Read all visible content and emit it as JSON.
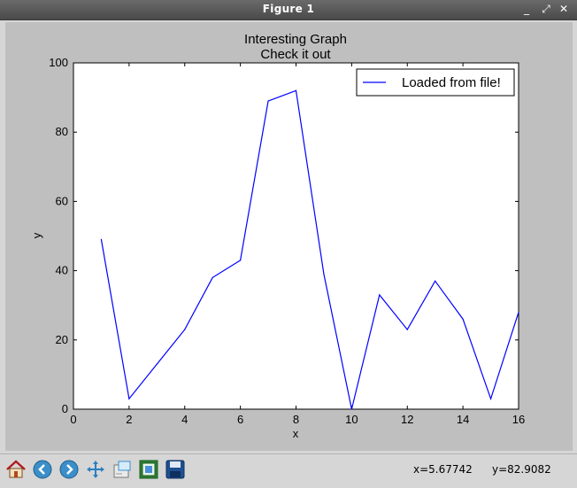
{
  "window": {
    "title": "Figure 1",
    "buttons": {
      "minimize": "_",
      "maximize": "⤢",
      "close": "✕"
    }
  },
  "chart_data": {
    "type": "line",
    "title": "Interesting Graph",
    "subtitle": "Check it out",
    "xlabel": "x",
    "ylabel": "y",
    "xlim": [
      0,
      16
    ],
    "ylim": [
      0,
      100
    ],
    "xticks": [
      0,
      2,
      4,
      6,
      8,
      10,
      12,
      14,
      16
    ],
    "yticks": [
      0,
      20,
      40,
      60,
      80,
      100
    ],
    "grid": false,
    "legend_position": "top-right",
    "series": [
      {
        "name": "Loaded from file!",
        "color": "#0000ff",
        "x": [
          1,
          2,
          3,
          4,
          5,
          6,
          7,
          8,
          9,
          10,
          11,
          12,
          13,
          14,
          15,
          16
        ],
        "y": [
          49,
          3,
          13,
          23,
          38,
          43,
          89,
          92,
          39,
          0,
          33,
          23,
          37,
          26,
          3,
          28
        ]
      }
    ]
  },
  "toolbar": {
    "icons": [
      "home-icon",
      "back-icon",
      "forward-icon",
      "pan-icon",
      "zoom-icon",
      "subplots-icon",
      "save-icon"
    ],
    "coords": {
      "x": "x=5.67742",
      "y": "y=82.9082"
    }
  }
}
